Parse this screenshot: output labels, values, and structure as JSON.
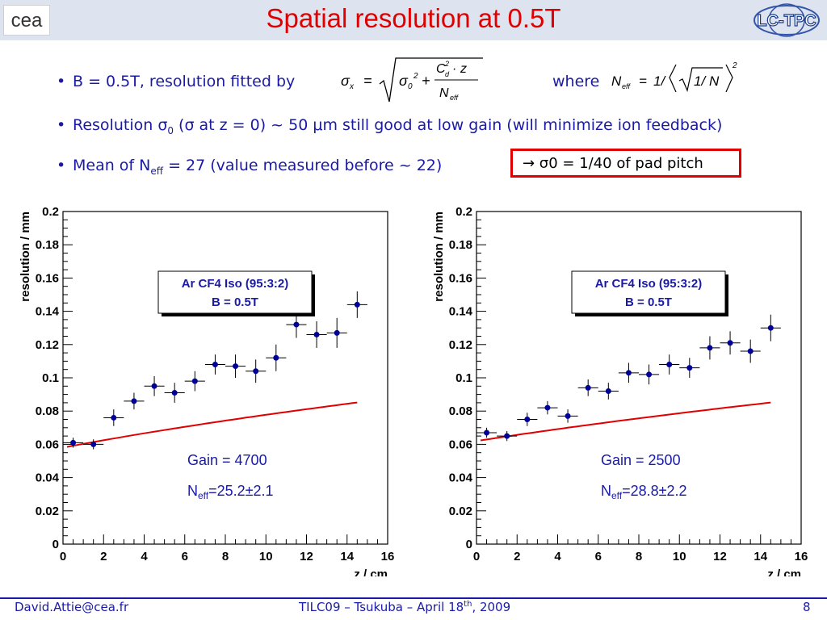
{
  "header": {
    "title": "Spatial resolution at 0.5T",
    "logo_left": "cea",
    "logo_right": "LC-TPC"
  },
  "bullets": [
    {
      "text": "B = 0.5T, resolution fitted by",
      "where_label": "where"
    },
    {
      "text_a": "Resolution σ",
      "text_sub": "0",
      "text_b": " (σ at z = 0) ~ 50 μm still good at low gain (will minimize ion feedback)"
    },
    {
      "text_a": "Mean of N",
      "text_sub": "eff",
      "text_b": " = 27 (value measured before ~ 22)"
    }
  ],
  "callout": "→ σ0 = 1/40 of pad pitch",
  "colors": {
    "title": "#e00000",
    "text": "#1a1aa6",
    "marker": "#000099",
    "fit": "#e00000",
    "header_bg": "#dde3ef"
  },
  "chart_data": [
    {
      "type": "scatter",
      "xlabel": "z / cm",
      "ylabel": "resolution / mm",
      "xlim": [
        0,
        16
      ],
      "ylim": [
        0,
        0.2
      ],
      "xticks": [
        "0",
        "2",
        "4",
        "6",
        "8",
        "10",
        "12",
        "14",
        "16"
      ],
      "yticks": [
        "0",
        "0.02",
        "0.04",
        "0.06",
        "0.08",
        "0.1",
        "0.12",
        "0.14",
        "0.16",
        "0.18",
        "0.2"
      ],
      "legend_line1": "Ar CF4 Iso (95:3:2)",
      "legend_line2": "B = 0.5T",
      "gain_label": "Gain = 4700",
      "neff_prefix": "N",
      "neff_sub": "eff",
      "neff_value": "=25.2±2.1",
      "points": [
        {
          "x": 0.5,
          "y": 0.061,
          "ey": 0.003
        },
        {
          "x": 1.5,
          "y": 0.06,
          "ey": 0.003
        },
        {
          "x": 2.5,
          "y": 0.076,
          "ey": 0.005
        },
        {
          "x": 3.5,
          "y": 0.086,
          "ey": 0.005
        },
        {
          "x": 4.5,
          "y": 0.095,
          "ey": 0.006
        },
        {
          "x": 5.5,
          "y": 0.091,
          "ey": 0.006
        },
        {
          "x": 6.5,
          "y": 0.098,
          "ey": 0.006
        },
        {
          "x": 7.5,
          "y": 0.108,
          "ey": 0.006
        },
        {
          "x": 8.5,
          "y": 0.107,
          "ey": 0.007
        },
        {
          "x": 9.5,
          "y": 0.104,
          "ey": 0.007
        },
        {
          "x": 10.5,
          "y": 0.112,
          "ey": 0.008
        },
        {
          "x": 11.5,
          "y": 0.132,
          "ey": 0.008
        },
        {
          "x": 12.5,
          "y": 0.126,
          "ey": 0.008
        },
        {
          "x": 13.5,
          "y": 0.127,
          "ey": 0.009
        },
        {
          "x": 14.5,
          "y": 0.144,
          "ey": 0.008
        }
      ],
      "fit": {
        "sigma0": 0.058,
        "neff": 25.2,
        "x_range": [
          0.2,
          14.5
        ]
      }
    },
    {
      "type": "scatter",
      "xlabel": "z / cm",
      "ylabel": "resolution / mm",
      "xlim": [
        0,
        16
      ],
      "ylim": [
        0,
        0.2
      ],
      "xticks": [
        "0",
        "2",
        "4",
        "6",
        "8",
        "10",
        "12",
        "14",
        "16"
      ],
      "yticks": [
        "0",
        "0.02",
        "0.04",
        "0.06",
        "0.08",
        "0.1",
        "0.12",
        "0.14",
        "0.16",
        "0.18",
        "0.2"
      ],
      "legend_line1": "Ar CF4 Iso (95:3:2)",
      "legend_line2": "B = 0.5T",
      "gain_label": "Gain = 2500",
      "neff_prefix": "N",
      "neff_sub": "eff",
      "neff_value": "=28.8±2.2",
      "points": [
        {
          "x": 0.5,
          "y": 0.067,
          "ey": 0.003
        },
        {
          "x": 1.5,
          "y": 0.065,
          "ey": 0.003
        },
        {
          "x": 2.5,
          "y": 0.075,
          "ey": 0.004
        },
        {
          "x": 3.5,
          "y": 0.082,
          "ey": 0.004
        },
        {
          "x": 4.5,
          "y": 0.077,
          "ey": 0.004
        },
        {
          "x": 5.5,
          "y": 0.094,
          "ey": 0.005
        },
        {
          "x": 6.5,
          "y": 0.092,
          "ey": 0.005
        },
        {
          "x": 7.5,
          "y": 0.103,
          "ey": 0.006
        },
        {
          "x": 8.5,
          "y": 0.102,
          "ey": 0.006
        },
        {
          "x": 9.5,
          "y": 0.108,
          "ey": 0.006
        },
        {
          "x": 10.5,
          "y": 0.106,
          "ey": 0.006
        },
        {
          "x": 11.5,
          "y": 0.118,
          "ey": 0.007
        },
        {
          "x": 12.5,
          "y": 0.121,
          "ey": 0.007
        },
        {
          "x": 13.5,
          "y": 0.116,
          "ey": 0.007
        },
        {
          "x": 14.5,
          "y": 0.13,
          "ey": 0.008
        }
      ],
      "fit": {
        "sigma0": 0.062,
        "neff": 28.8,
        "x_range": [
          0.2,
          14.5
        ]
      }
    }
  ],
  "footer": {
    "email": "David.Attie@cea.fr",
    "event_a": "TILC09 – Tsukuba – April 18",
    "event_sup": "th",
    "event_b": ", 2009",
    "page": "8"
  }
}
